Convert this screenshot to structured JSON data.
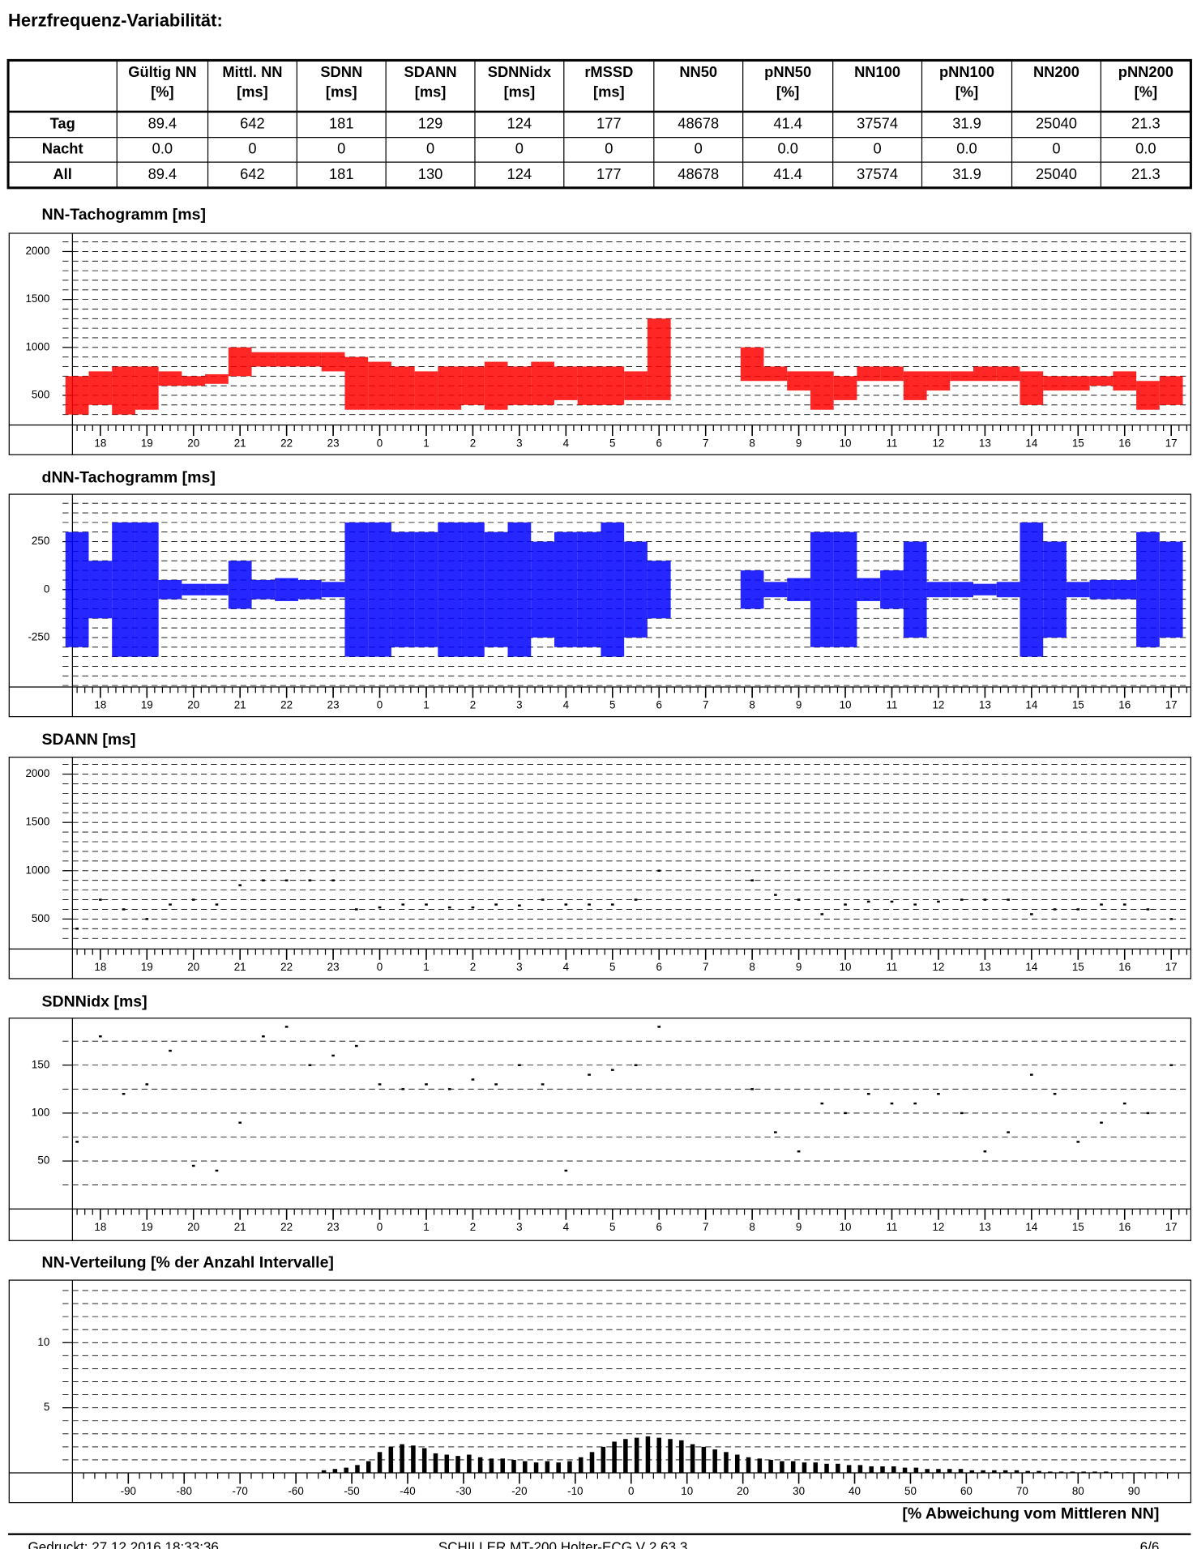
{
  "title": "Herzfrequenz-Variabilität:",
  "table": {
    "headers": [
      [
        "Gültig NN",
        "[%]"
      ],
      [
        "Mittl. NN",
        "[ms]"
      ],
      [
        "SDNN",
        "[ms]"
      ],
      [
        "SDANN",
        "[ms]"
      ],
      [
        "SDNNidx",
        "[ms]"
      ],
      [
        "rMSSD",
        "[ms]"
      ],
      [
        "NN50"
      ],
      [
        "pNN50",
        "[%]"
      ],
      [
        "NN100"
      ],
      [
        "pNN100",
        "[%]"
      ],
      [
        "NN200"
      ],
      [
        "pNN200",
        "[%]"
      ]
    ],
    "rows": [
      [
        "Tag",
        "89.4",
        "642",
        "181",
        "129",
        "124",
        "177",
        "48678",
        "41.4",
        "37574",
        "31.9",
        "25040",
        "21.3"
      ],
      [
        "Nacht",
        "0.0",
        "0",
        "0",
        "0",
        "0",
        "0",
        "0",
        "0.0",
        "0",
        "0.0",
        "0",
        "0.0"
      ],
      [
        "All",
        "89.4",
        "642",
        "181",
        "130",
        "124",
        "177",
        "48678",
        "41.4",
        "37574",
        "31.9",
        "25040",
        "21.3"
      ]
    ]
  },
  "chart_data": [
    {
      "type": "range",
      "title": "NN-Tachogramm [ms]",
      "color": "#ff0000",
      "x": [
        17.5,
        18,
        18.5,
        19,
        19.5,
        20,
        20.5,
        21,
        21.5,
        22,
        22.5,
        23,
        23.5,
        24,
        24.5,
        25,
        25.5,
        26,
        26.5,
        27,
        27.5,
        28,
        28.5,
        29,
        29.5,
        30,
        30.5,
        31,
        31.5,
        32,
        32.5,
        33,
        33.5,
        34,
        34.5,
        35,
        35.5,
        36,
        36.5,
        37,
        37.5,
        38,
        38.5,
        39,
        39.5,
        40,
        40.5,
        41
      ],
      "low": [
        300,
        400,
        300,
        350,
        600,
        600,
        620,
        700,
        800,
        800,
        800,
        750,
        350,
        350,
        350,
        350,
        350,
        400,
        350,
        400,
        400,
        450,
        400,
        400,
        450,
        450,
        null,
        null,
        null,
        650,
        650,
        550,
        350,
        450,
        650,
        650,
        450,
        550,
        650,
        650,
        650,
        400,
        550,
        550,
        600,
        550,
        350,
        400
      ],
      "high": [
        700,
        750,
        800,
        800,
        750,
        700,
        720,
        1000,
        950,
        950,
        950,
        950,
        900,
        850,
        800,
        750,
        800,
        800,
        850,
        800,
        850,
        800,
        800,
        800,
        750,
        1300,
        null,
        null,
        null,
        1000,
        800,
        750,
        750,
        700,
        800,
        800,
        750,
        750,
        750,
        800,
        800,
        750,
        700,
        700,
        700,
        750,
        650,
        700
      ],
      "xlim": [
        17.4,
        41.4
      ],
      "xticks": [
        18,
        19,
        20,
        21,
        22,
        23,
        {
          "value": 24,
          "label": "0"
        },
        {
          "value": 25,
          "label": "1"
        },
        {
          "value": 26,
          "label": "2"
        },
        {
          "value": 27,
          "label": "3"
        },
        {
          "value": 28,
          "label": "4"
        },
        {
          "value": 29,
          "label": "5"
        },
        {
          "value": 30,
          "label": "6"
        },
        {
          "value": 31,
          "label": "7"
        },
        {
          "value": 32,
          "label": "8"
        },
        {
          "value": 33,
          "label": "9"
        },
        {
          "value": 34,
          "label": "10"
        },
        {
          "value": 35,
          "label": "11"
        },
        {
          "value": 36,
          "label": "12"
        },
        {
          "value": 37,
          "label": "13"
        },
        {
          "value": 38,
          "label": "14"
        },
        {
          "value": 39,
          "label": "15"
        },
        {
          "value": 40,
          "label": "16"
        },
        {
          "value": 41,
          "label": "17"
        }
      ],
      "ylim": [
        190,
        2190
      ],
      "yticks": [
        500,
        1000,
        1500,
        2000
      ],
      "grid": true
    },
    {
      "type": "range",
      "title": "dNN-Tachogramm [ms]",
      "color": "#0000ff",
      "x": [
        17.5,
        18,
        18.5,
        19,
        19.5,
        20,
        20.5,
        21,
        21.5,
        22,
        22.5,
        23,
        23.5,
        24,
        24.5,
        25,
        25.5,
        26,
        26.5,
        27,
        27.5,
        28,
        28.5,
        29,
        29.5,
        30,
        30.5,
        31,
        31.5,
        32,
        32.5,
        33,
        33.5,
        34,
        34.5,
        35,
        35.5,
        36,
        36.5,
        37,
        37.5,
        38,
        38.5,
        39,
        39.5,
        40,
        40.5,
        41
      ],
      "low": [
        -300,
        -150,
        -350,
        -350,
        -50,
        -30,
        -30,
        -100,
        -50,
        -60,
        -50,
        -40,
        -350,
        -350,
        -300,
        -300,
        -350,
        -350,
        -300,
        -350,
        -250,
        -300,
        -300,
        -350,
        -250,
        -150,
        null,
        null,
        null,
        -100,
        -40,
        -60,
        -300,
        -300,
        -60,
        -100,
        -250,
        -40,
        -40,
        -30,
        -40,
        -350,
        -250,
        -40,
        -50,
        -50,
        -300,
        -250
      ],
      "high": [
        300,
        150,
        350,
        350,
        50,
        30,
        30,
        150,
        50,
        60,
        50,
        40,
        350,
        350,
        300,
        300,
        350,
        350,
        300,
        350,
        250,
        300,
        300,
        350,
        250,
        150,
        null,
        null,
        null,
        100,
        40,
        60,
        300,
        300,
        60,
        100,
        250,
        40,
        40,
        30,
        40,
        350,
        250,
        40,
        50,
        50,
        300,
        250
      ],
      "xlim": [
        17.4,
        41.4
      ],
      "xticks": [
        18,
        19,
        20,
        21,
        22,
        23,
        {
          "value": 24,
          "label": "0"
        },
        {
          "value": 25,
          "label": "1"
        },
        {
          "value": 26,
          "label": "2"
        },
        {
          "value": 27,
          "label": "3"
        },
        {
          "value": 28,
          "label": "4"
        },
        {
          "value": 29,
          "label": "5"
        },
        {
          "value": 30,
          "label": "6"
        },
        {
          "value": 31,
          "label": "7"
        },
        {
          "value": 32,
          "label": "8"
        },
        {
          "value": 33,
          "label": "9"
        },
        {
          "value": 34,
          "label": "10"
        },
        {
          "value": 35,
          "label": "11"
        },
        {
          "value": 36,
          "label": "12"
        },
        {
          "value": 37,
          "label": "13"
        },
        {
          "value": 38,
          "label": "14"
        },
        {
          "value": 39,
          "label": "15"
        },
        {
          "value": 40,
          "label": "16"
        },
        {
          "value": 41,
          "label": "17"
        }
      ],
      "ylim": [
        -508,
        497
      ],
      "yticks": [
        -250,
        0,
        250
      ],
      "grid": true
    },
    {
      "type": "scatter",
      "title": "SDANN [ms]",
      "color": "#000000",
      "x": [
        17.5,
        18,
        18.5,
        19,
        19.5,
        20,
        20.5,
        21,
        21.5,
        22,
        22.5,
        23,
        23.5,
        24,
        24.5,
        25,
        25.5,
        26,
        26.5,
        27,
        27.5,
        28,
        28.5,
        29,
        29.5,
        30,
        30.5,
        31,
        31.5,
        32,
        32.5,
        33,
        33.5,
        34,
        34.5,
        35,
        35.5,
        36,
        36.5,
        37,
        37.5,
        38,
        38.5,
        39,
        39.5,
        40,
        40.5,
        41
      ],
      "values": [
        400,
        700,
        600,
        500,
        650,
        700,
        650,
        850,
        900,
        900,
        900,
        900,
        600,
        620,
        650,
        650,
        620,
        620,
        650,
        640,
        700,
        650,
        650,
        650,
        700,
        1000,
        null,
        null,
        null,
        900,
        750,
        700,
        550,
        650,
        680,
        680,
        650,
        680,
        700,
        700,
        700,
        550,
        600,
        600,
        650,
        650,
        600,
        500
      ],
      "xlim": [
        17.4,
        41.4
      ],
      "xticks": [
        18,
        19,
        20,
        21,
        22,
        23,
        {
          "value": 24,
          "label": "0"
        },
        {
          "value": 25,
          "label": "1"
        },
        {
          "value": 26,
          "label": "2"
        },
        {
          "value": 27,
          "label": "3"
        },
        {
          "value": 28,
          "label": "4"
        },
        {
          "value": 29,
          "label": "5"
        },
        {
          "value": 30,
          "label": "6"
        },
        {
          "value": 31,
          "label": "7"
        },
        {
          "value": 32,
          "label": "8"
        },
        {
          "value": 33,
          "label": "9"
        },
        {
          "value": 34,
          "label": "10"
        },
        {
          "value": 35,
          "label": "11"
        },
        {
          "value": 36,
          "label": "12"
        },
        {
          "value": 37,
          "label": "13"
        },
        {
          "value": 38,
          "label": "14"
        },
        {
          "value": 39,
          "label": "15"
        },
        {
          "value": 40,
          "label": "16"
        },
        {
          "value": 41,
          "label": "17"
        }
      ],
      "ylim": [
        190,
        2175
      ],
      "yticks": [
        500,
        1000,
        1500,
        2000
      ],
      "grid": true
    },
    {
      "type": "scatter",
      "title": "SDNNidx [ms]",
      "color": "#000000",
      "x": [
        17.5,
        18,
        18.5,
        19,
        19.5,
        20,
        20.5,
        21,
        21.5,
        22,
        22.5,
        23,
        23.5,
        24,
        24.5,
        25,
        25.5,
        26,
        26.5,
        27,
        27.5,
        28,
        28.5,
        29,
        29.5,
        30,
        30.5,
        31,
        31.5,
        32,
        32.5,
        33,
        33.5,
        34,
        34.5,
        35,
        35.5,
        36,
        36.5,
        37,
        37.5,
        38,
        38.5,
        39,
        39.5,
        40,
        40.5,
        41
      ],
      "values": [
        70,
        180,
        120,
        130,
        165,
        45,
        40,
        90,
        180,
        190,
        150,
        160,
        170,
        130,
        125,
        130,
        125,
        135,
        130,
        150,
        130,
        40,
        140,
        145,
        150,
        190,
        null,
        null,
        null,
        125,
        80,
        60,
        110,
        100,
        120,
        110,
        110,
        120,
        100,
        60,
        80,
        140,
        120,
        70,
        90,
        110,
        100,
        150
      ],
      "xlim": [
        17.4,
        41.4
      ],
      "xticks": [
        18,
        19,
        20,
        21,
        22,
        23,
        {
          "value": 24,
          "label": "0"
        },
        {
          "value": 25,
          "label": "1"
        },
        {
          "value": 26,
          "label": "2"
        },
        {
          "value": 27,
          "label": "3"
        },
        {
          "value": 28,
          "label": "4"
        },
        {
          "value": 29,
          "label": "5"
        },
        {
          "value": 30,
          "label": "6"
        },
        {
          "value": 31,
          "label": "7"
        },
        {
          "value": 32,
          "label": "8"
        },
        {
          "value": 33,
          "label": "9"
        },
        {
          "value": 34,
          "label": "10"
        },
        {
          "value": 35,
          "label": "11"
        },
        {
          "value": 36,
          "label": "12"
        },
        {
          "value": 37,
          "label": "13"
        },
        {
          "value": 38,
          "label": "14"
        },
        {
          "value": 39,
          "label": "15"
        },
        {
          "value": 40,
          "label": "16"
        },
        {
          "value": 41,
          "label": "17"
        }
      ],
      "ylim": [
        0,
        199
      ],
      "yticks": [
        50,
        100,
        150
      ],
      "grid": true
    },
    {
      "type": "histogram",
      "title": "NN-Verteilung [% der Anzahl Intervalle]",
      "xlabel": "[% Abweichung vom Mittleren NN]",
      "color": "#000000",
      "bins": [
        -56,
        -54,
        -52,
        -50,
        -48,
        -46,
        -44,
        -42,
        -40,
        -38,
        -36,
        -34,
        -32,
        -30,
        -28,
        -26,
        -24,
        -22,
        -20,
        -18,
        -16,
        -14,
        -12,
        -10,
        -8,
        -6,
        -4,
        -2,
        0,
        2,
        4,
        6,
        8,
        10,
        12,
        14,
        16,
        18,
        20,
        22,
        24,
        26,
        28,
        30,
        32,
        34,
        36,
        38,
        40,
        42,
        44,
        46,
        48,
        50,
        52,
        54,
        56,
        58,
        60,
        62,
        64,
        66,
        68,
        70,
        72,
        74,
        76,
        78,
        80,
        82,
        84,
        86,
        88,
        90,
        92,
        94,
        96
      ],
      "values": [
        0.2,
        0.3,
        0.4,
        0.6,
        0.9,
        1.6,
        2.0,
        2.2,
        2.1,
        1.9,
        1.5,
        1.4,
        1.3,
        1.4,
        1.2,
        1.1,
        1.1,
        1.0,
        0.9,
        0.8,
        0.9,
        0.8,
        0.9,
        1.2,
        1.6,
        2.0,
        2.4,
        2.6,
        2.7,
        2.8,
        2.7,
        2.6,
        2.5,
        2.2,
        2.0,
        1.8,
        1.6,
        1.4,
        1.2,
        1.1,
        1.0,
        0.9,
        0.9,
        0.8,
        0.8,
        0.7,
        0.7,
        0.6,
        0.6,
        0.5,
        0.5,
        0.5,
        0.4,
        0.4,
        0.3,
        0.3,
        0.3,
        0.3,
        0.2,
        0.2,
        0.2,
        0.2,
        0.2,
        0.15,
        0.15,
        0.1,
        0.1,
        0.1,
        0.1,
        0.1,
        0.1,
        0.05,
        0.05,
        0.05,
        0.05,
        0.05
      ],
      "xlim": [
        -100,
        100
      ],
      "xticks": [
        -90,
        -80,
        -70,
        -60,
        -50,
        -40,
        -30,
        -20,
        -10,
        0,
        10,
        20,
        30,
        40,
        50,
        60,
        70,
        80,
        90
      ],
      "ylim": [
        0,
        14.8
      ],
      "yticks": [
        5,
        10
      ],
      "grid": true
    }
  ],
  "footer": {
    "printed": "Gedruckt: 27.12.2016 18:33:36",
    "device": "SCHILLER MT-200 Holter-ECG V 2.63.3",
    "page": "6/6"
  }
}
